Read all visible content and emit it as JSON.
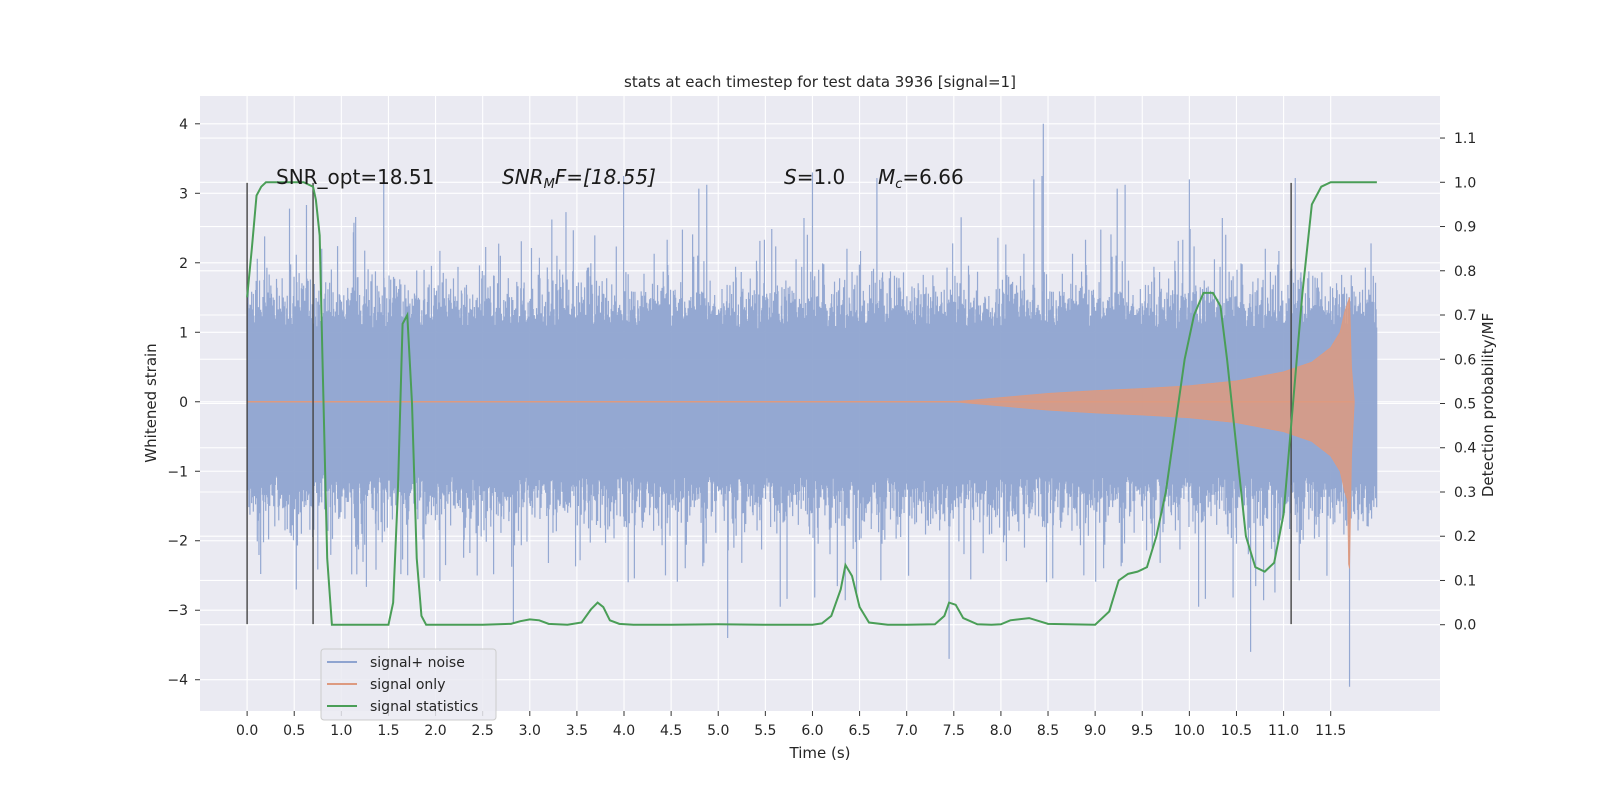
{
  "chart_data": {
    "type": "line",
    "title": "stats at each timestep for test data 3936 [signal=1]",
    "xlabel": "Time (s)",
    "ylabel": "Whitened strain",
    "y2label": "Detection probability/MF",
    "xlim": [
      -0.5,
      12.66
    ],
    "ylim": [
      -4.45,
      4.4
    ],
    "y2lim": [
      -0.195,
      1.195
    ],
    "x_ticks": [
      "0.0",
      "0.5",
      "1.0",
      "1.5",
      "2.0",
      "2.5",
      "3.0",
      "3.5",
      "4.0",
      "4.5",
      "5.0",
      "5.5",
      "6.0",
      "6.5",
      "7.0",
      "7.5",
      "8.0",
      "8.5",
      "9.0",
      "9.5",
      "10.0",
      "10.5",
      "11.0",
      "11.5"
    ],
    "y_ticks": [
      "4",
      "3",
      "2",
      "1",
      "0",
      "−1",
      "−2",
      "−3",
      "−4"
    ],
    "y2_ticks": [
      "1.1",
      "1.0",
      "0.9",
      "0.8",
      "0.7",
      "0.6",
      "0.5",
      "0.4",
      "0.3",
      "0.2",
      "0.1",
      "0.0"
    ],
    "grid": true,
    "legend_position": "lower-left",
    "annotations": {
      "snr_opt": "SNR_opt=18.51",
      "snr_mf_prefix": "SNR",
      "snr_mf_sub": "M",
      "snr_mf_suffix": "F=[18.55]",
      "s_label": "S",
      "s_value": "=1.0",
      "mc_label": "M",
      "mc_sub": "c",
      "mc_value": "=6.66"
    },
    "vertical_markers_x": [
      0.0,
      0.7,
      11.08
    ],
    "series": [
      {
        "name": "signal+ noise",
        "color": "#8fa4d0",
        "x_range": [
          0.0,
          11.99
        ],
        "envelope": "noise band mostly within ±1.3, spikes up to ±3, extremes 4.0 at 8.45 and −4.1 at 11.7"
      },
      {
        "name": "signal only",
        "color": "#dd9a80",
        "x_range": [
          7.5,
          11.75
        ],
        "amplitude_points": [
          [
            7.5,
            0.0
          ],
          [
            8.0,
            0.06
          ],
          [
            8.5,
            0.12
          ],
          [
            9.0,
            0.16
          ],
          [
            9.5,
            0.19
          ],
          [
            10.0,
            0.23
          ],
          [
            10.5,
            0.3
          ],
          [
            11.0,
            0.43
          ],
          [
            11.3,
            0.57
          ],
          [
            11.5,
            0.78
          ],
          [
            11.6,
            1.0
          ],
          [
            11.65,
            1.3
          ],
          [
            11.7,
            1.5
          ],
          [
            11.72,
            0.5
          ],
          [
            11.75,
            0.0
          ]
        ]
      },
      {
        "name": "signal statistics",
        "color": "#4a9e57",
        "axis": "right",
        "x": [
          0.0,
          0.05,
          0.1,
          0.15,
          0.2,
          0.3,
          0.4,
          0.5,
          0.6,
          0.65,
          0.7,
          0.73,
          0.77,
          0.8,
          0.85,
          0.9,
          1.0,
          1.2,
          1.4,
          1.5,
          1.55,
          1.6,
          1.65,
          1.7,
          1.75,
          1.8,
          1.85,
          1.9,
          2.0,
          2.5,
          2.8,
          2.9,
          3.0,
          3.1,
          3.2,
          3.4,
          3.55,
          3.65,
          3.72,
          3.78,
          3.85,
          3.95,
          4.1,
          4.5,
          5.0,
          5.5,
          6.0,
          6.1,
          6.2,
          6.3,
          6.35,
          6.42,
          6.5,
          6.6,
          6.8,
          7.0,
          7.3,
          7.4,
          7.45,
          7.52,
          7.6,
          7.75,
          7.9,
          8.0,
          8.1,
          8.3,
          8.5,
          9.0,
          9.15,
          9.25,
          9.35,
          9.45,
          9.55,
          9.65,
          9.75,
          9.85,
          9.95,
          10.05,
          10.15,
          10.25,
          10.33,
          10.4,
          10.5,
          10.6,
          10.7,
          10.8,
          10.9,
          11.0,
          11.1,
          11.2,
          11.3,
          11.4,
          11.5,
          11.7,
          11.99
        ],
        "y": [
          0.74,
          0.85,
          0.97,
          0.99,
          1.0,
          1.0,
          1.0,
          1.0,
          1.0,
          0.995,
          0.99,
          0.96,
          0.88,
          0.6,
          0.15,
          0.0,
          0.0,
          0.0,
          0.0,
          0.0,
          0.05,
          0.3,
          0.68,
          0.7,
          0.5,
          0.15,
          0.02,
          0.0,
          0.0,
          0.0,
          0.002,
          0.008,
          0.012,
          0.01,
          0.002,
          0.0,
          0.005,
          0.035,
          0.05,
          0.04,
          0.01,
          0.002,
          0.0,
          0.0,
          0.001,
          0.0,
          0.0,
          0.003,
          0.02,
          0.08,
          0.135,
          0.11,
          0.04,
          0.005,
          0.0,
          0.0,
          0.001,
          0.02,
          0.05,
          0.045,
          0.015,
          0.001,
          0.0,
          0.001,
          0.01,
          0.015,
          0.002,
          0.0,
          0.03,
          0.1,
          0.115,
          0.12,
          0.13,
          0.2,
          0.3,
          0.45,
          0.6,
          0.7,
          0.75,
          0.75,
          0.72,
          0.6,
          0.4,
          0.2,
          0.13,
          0.12,
          0.14,
          0.25,
          0.5,
          0.75,
          0.95,
          0.99,
          1.0,
          1.0,
          1.0
        ]
      }
    ]
  }
}
